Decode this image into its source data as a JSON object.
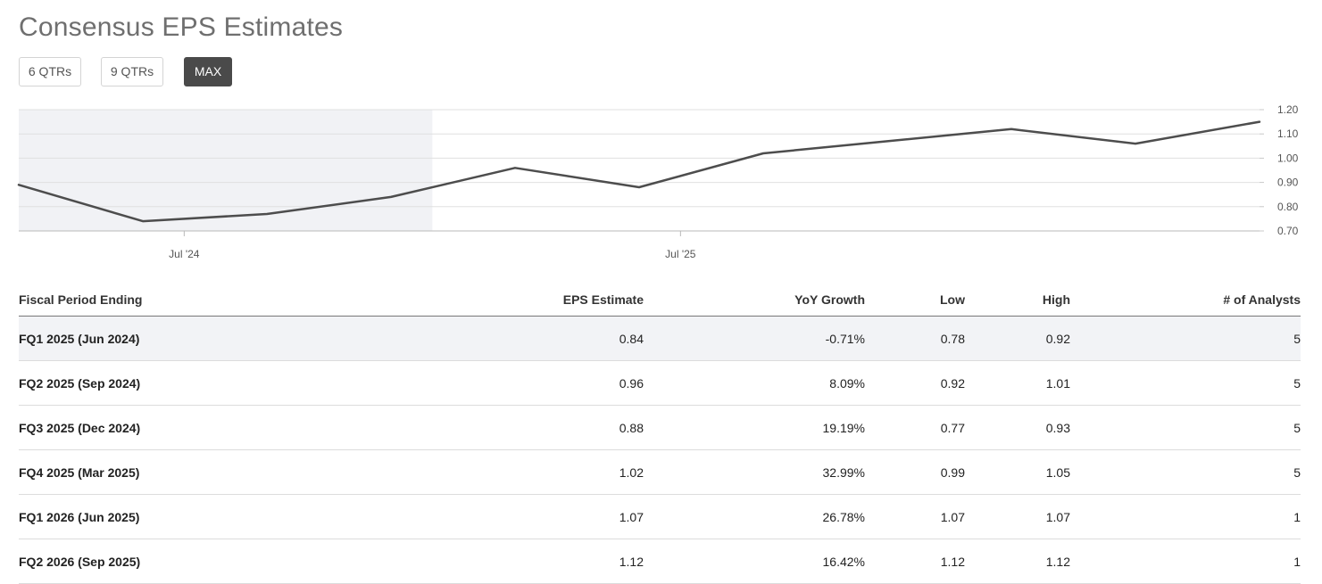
{
  "page": {
    "title": "Consensus EPS Estimates"
  },
  "range_buttons": [
    {
      "label": "6 QTRs",
      "active": false
    },
    {
      "label": "9 QTRs",
      "active": false
    },
    {
      "label": "MAX",
      "active": true
    }
  ],
  "colors": {
    "line": "#4d4d4d",
    "past_shade": "#f1f2f5",
    "active_button": "#4a4a4a"
  },
  "chart_data": {
    "type": "line",
    "title": "",
    "series": [
      {
        "name": "EPS Estimate",
        "values": [
          {
            "date": "2024-03",
            "value": 0.89
          },
          {
            "date": "2024-06",
            "value": 0.74
          },
          {
            "date": "2024-09",
            "value": 0.77
          },
          {
            "date": "2024-12",
            "value": 0.84
          },
          {
            "date": "2025-03",
            "value": 0.96
          },
          {
            "date": "2025-06",
            "value": 0.88
          },
          {
            "date": "2025-09",
            "value": 1.02
          },
          {
            "date": "2025-12",
            "value": 1.07
          },
          {
            "date": "2026-03",
            "value": 1.12
          },
          {
            "date": "2026-06",
            "value": 1.06
          },
          {
            "date": "2026-09",
            "value": 1.15
          }
        ]
      }
    ],
    "x_ticks": [
      {
        "label": "Jul '24",
        "date": "2024-07"
      },
      {
        "label": "Jul '25",
        "date": "2025-07"
      }
    ],
    "y_ticks": [
      "0.70",
      "0.80",
      "0.90",
      "1.00",
      "1.10",
      "1.20"
    ],
    "ylim": [
      0.7,
      1.2
    ],
    "xlim": [
      "2024-03",
      "2026-09"
    ],
    "shaded_until": "2025-01",
    "grid": true
  },
  "table": {
    "headers": {
      "period": "Fiscal Period Ending",
      "eps": "EPS Estimate",
      "yoy": "YoY Growth",
      "low": "Low",
      "high": "High",
      "analysts": "# of Analysts"
    },
    "rows": [
      {
        "period": "FQ1 2025 (Jun 2024)",
        "eps": "0.84",
        "yoy": "-0.71%",
        "low": "0.78",
        "high": "0.92",
        "analysts": "5"
      },
      {
        "period": "FQ2 2025 (Sep 2024)",
        "eps": "0.96",
        "yoy": "8.09%",
        "low": "0.92",
        "high": "1.01",
        "analysts": "5"
      },
      {
        "period": "FQ3 2025 (Dec 2024)",
        "eps": "0.88",
        "yoy": "19.19%",
        "low": "0.77",
        "high": "0.93",
        "analysts": "5"
      },
      {
        "period": "FQ4 2025 (Mar 2025)",
        "eps": "1.02",
        "yoy": "32.99%",
        "low": "0.99",
        "high": "1.05",
        "analysts": "5"
      },
      {
        "period": "FQ1 2026 (Jun 2025)",
        "eps": "1.07",
        "yoy": "26.78%",
        "low": "1.07",
        "high": "1.07",
        "analysts": "1"
      },
      {
        "period": "FQ2 2026 (Sep 2025)",
        "eps": "1.12",
        "yoy": "16.42%",
        "low": "1.12",
        "high": "1.12",
        "analysts": "1"
      }
    ]
  }
}
